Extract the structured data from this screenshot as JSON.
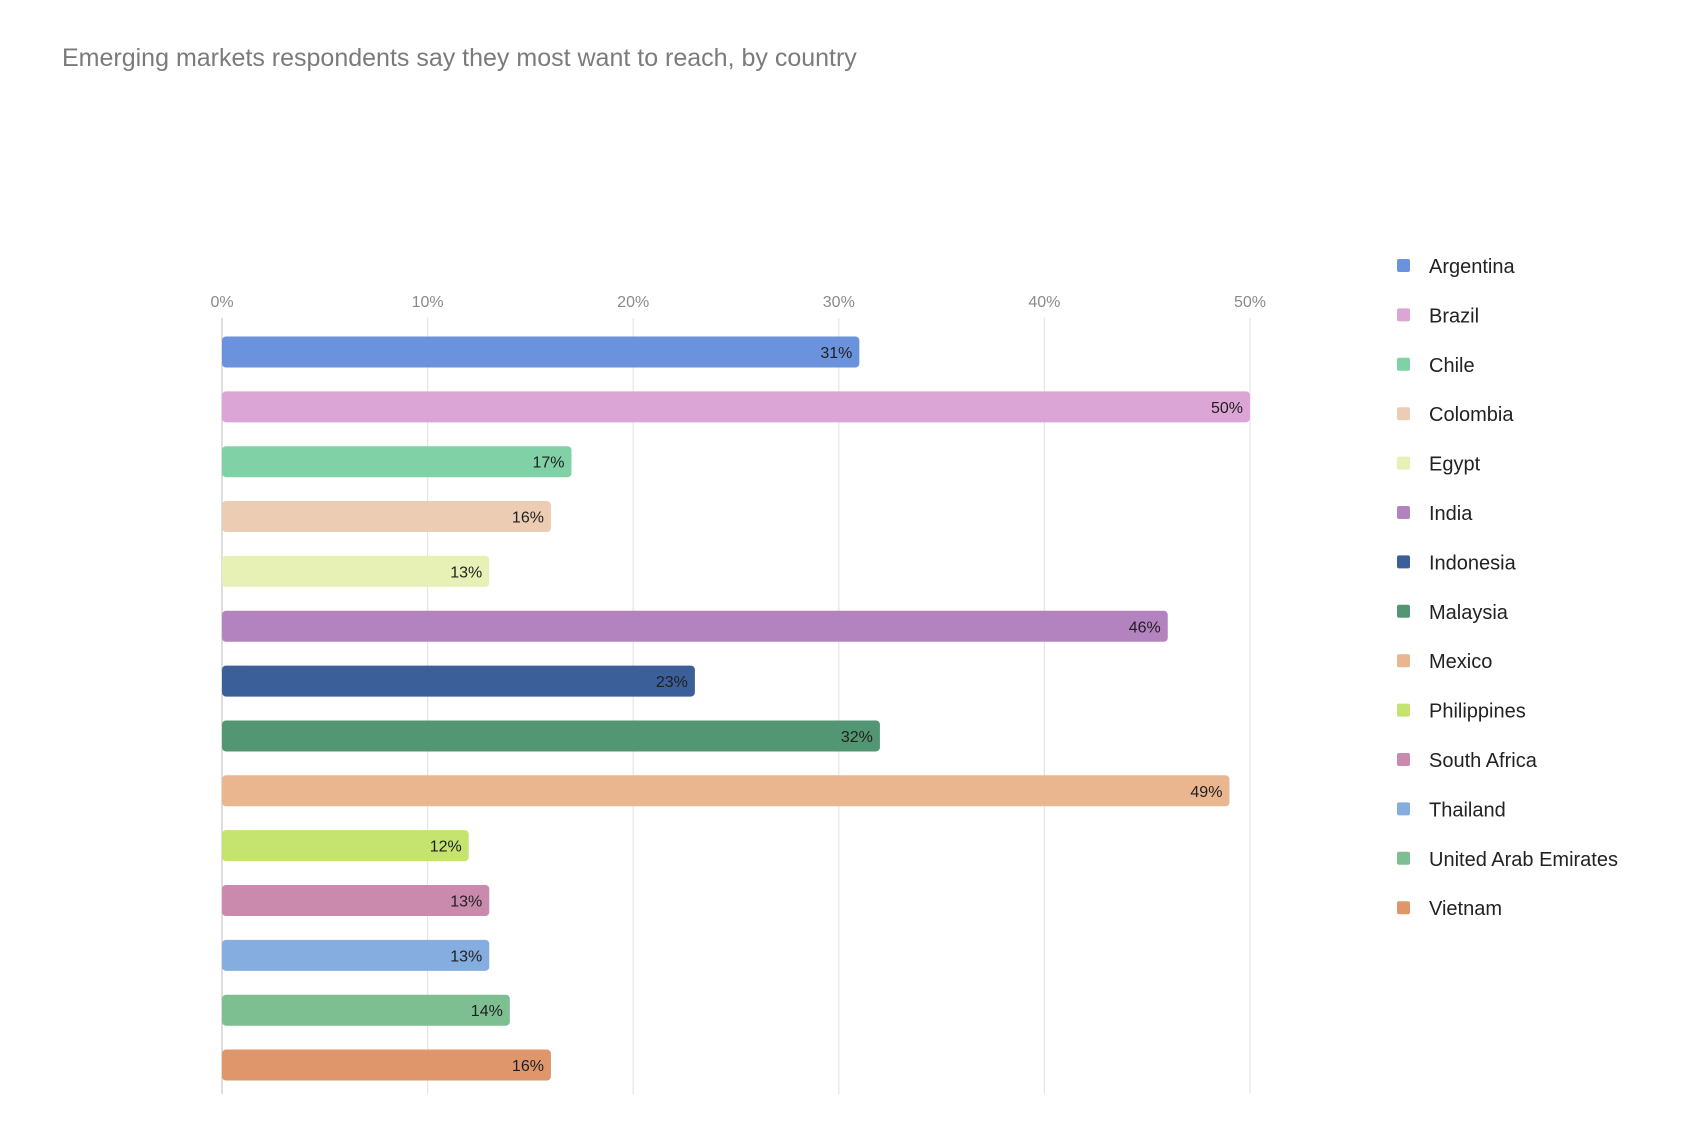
{
  "chart_data": {
    "type": "bar",
    "orientation": "horizontal",
    "title": "Emerging markets respondents say they most want to reach, by country",
    "categories": [
      "Argentina",
      "Brazil",
      "Chile",
      "Colombia",
      "Egypt",
      "India",
      "Indonesia",
      "Malaysia",
      "Mexico",
      "Philippines",
      "South Africa",
      "Thailand",
      "United Arab Emirates",
      "Vietnam"
    ],
    "values": [
      31,
      50,
      17,
      16,
      13,
      46,
      23,
      32,
      49,
      12,
      13,
      13,
      14,
      16
    ],
    "data_labels": [
      "31%",
      "50%",
      "17%",
      "16%",
      "13%",
      "46%",
      "23%",
      "32%",
      "49%",
      "12%",
      "13%",
      "13%",
      "14%",
      "16%"
    ],
    "colors": [
      "#6b93dd",
      "#dba5d6",
      "#80d2a6",
      "#eccdb3",
      "#e7f1b5",
      "#b383bf",
      "#3a5f99",
      "#539673",
      "#e9b690",
      "#c4e46f",
      "#c98aae",
      "#85ade0",
      "#7ebf92",
      "#df966b"
    ],
    "xlim": [
      0,
      50
    ],
    "x_ticks": [
      0,
      10,
      20,
      30,
      40,
      50
    ],
    "x_tick_labels": [
      "0%",
      "10%",
      "20%",
      "30%",
      "40%",
      "50%"
    ],
    "x_axis_position": "top",
    "grid": true,
    "legend_position": "right",
    "xlabel": "",
    "ylabel": ""
  }
}
